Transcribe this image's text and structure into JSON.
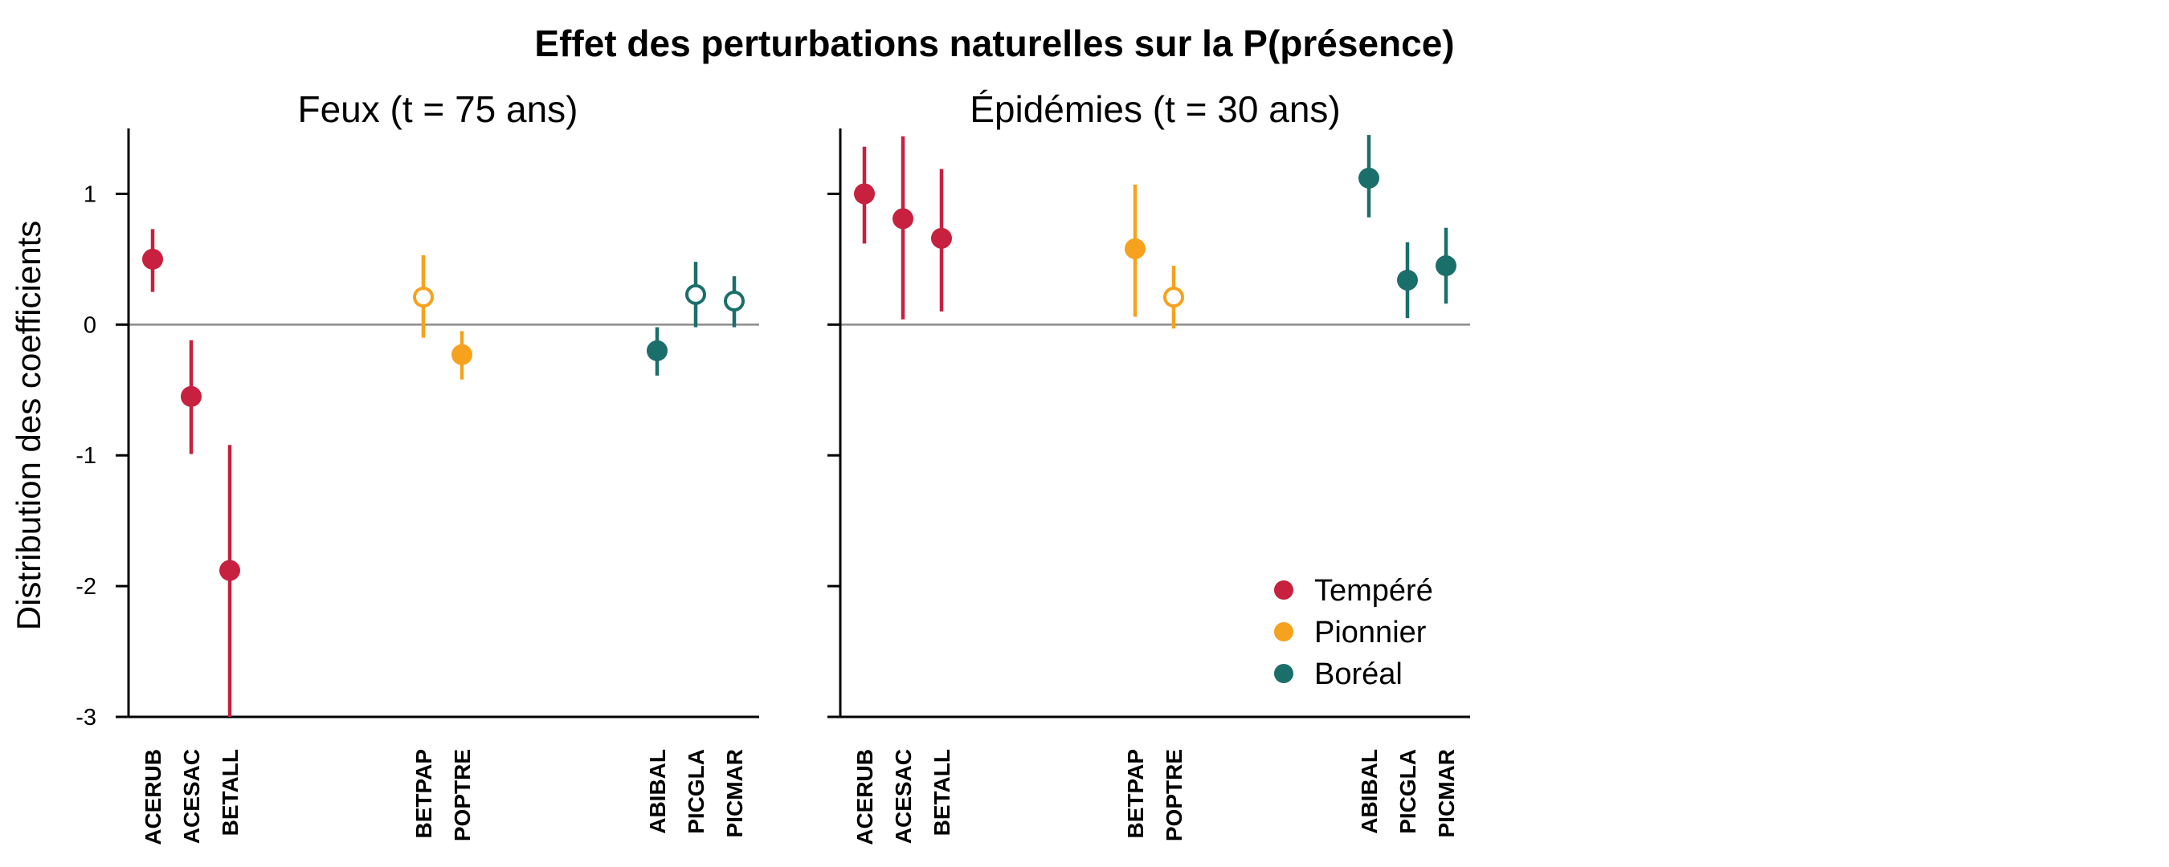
{
  "title": "Effet des perturbations naturelles sur la P(présence)",
  "chart_data": {
    "type": "scatter",
    "ylabel": "Distribution des coefficients",
    "ylim": [
      -3,
      1.5
    ],
    "yticks": [
      1,
      0,
      -1,
      -2,
      -3
    ],
    "reference_line": 0,
    "legend": {
      "position": "bottom-right",
      "entries": [
        {
          "label": "Tempéré",
          "color": "#c8203f"
        },
        {
          "label": "Pionnier",
          "color": "#f6a21e"
        },
        {
          "label": "Boréal",
          "color": "#1b6f6a"
        }
      ]
    },
    "panels": [
      {
        "title": "Feux (t = 75 ans)",
        "points": [
          {
            "species": "ACERUB",
            "group": "Tempéré",
            "estimate": 0.5,
            "low": 0.25,
            "high": 0.73,
            "filled": true
          },
          {
            "species": "ACESAC",
            "group": "Tempéré",
            "estimate": -0.55,
            "low": -0.99,
            "high": -0.12,
            "filled": true
          },
          {
            "species": "BETALL",
            "group": "Tempéré",
            "estimate": -1.88,
            "low": -3.0,
            "high": -0.92,
            "filled": true
          },
          {
            "species": "BETPAP",
            "group": "Pionnier",
            "estimate": 0.21,
            "low": -0.1,
            "high": 0.53,
            "filled": false
          },
          {
            "species": "POPTRE",
            "group": "Pionnier",
            "estimate": -0.23,
            "low": -0.42,
            "high": -0.05,
            "filled": true
          },
          {
            "species": "ABIBAL",
            "group": "Boréal",
            "estimate": -0.2,
            "low": -0.39,
            "high": -0.02,
            "filled": true
          },
          {
            "species": "PICGLA",
            "group": "Boréal",
            "estimate": 0.23,
            "low": -0.02,
            "high": 0.48,
            "filled": false
          },
          {
            "species": "PICMAR",
            "group": "Boréal",
            "estimate": 0.18,
            "low": -0.02,
            "high": 0.37,
            "filled": false
          }
        ]
      },
      {
        "title": "Épidémies (t = 30 ans)",
        "points": [
          {
            "species": "ACERUB",
            "group": "Tempéré",
            "estimate": 1.0,
            "low": 0.62,
            "high": 1.36,
            "filled": true
          },
          {
            "species": "ACESAC",
            "group": "Tempéré",
            "estimate": 0.81,
            "low": 0.04,
            "high": 1.44,
            "filled": true
          },
          {
            "species": "BETALL",
            "group": "Tempéré",
            "estimate": 0.66,
            "low": 0.1,
            "high": 1.19,
            "filled": true
          },
          {
            "species": "BETPAP",
            "group": "Pionnier",
            "estimate": 0.58,
            "low": 0.06,
            "high": 1.07,
            "filled": true
          },
          {
            "species": "POPTRE",
            "group": "Pionnier",
            "estimate": 0.21,
            "low": -0.03,
            "high": 0.45,
            "filled": false
          },
          {
            "species": "ABIBAL",
            "group": "Boréal",
            "estimate": 1.12,
            "low": 0.82,
            "high": 1.45,
            "filled": true
          },
          {
            "species": "PICGLA",
            "group": "Boréal",
            "estimate": 0.34,
            "low": 0.05,
            "high": 0.63,
            "filled": true
          },
          {
            "species": "PICMAR",
            "group": "Boréal",
            "estimate": 0.45,
            "low": 0.16,
            "high": 0.74,
            "filled": true
          }
        ]
      }
    ]
  }
}
